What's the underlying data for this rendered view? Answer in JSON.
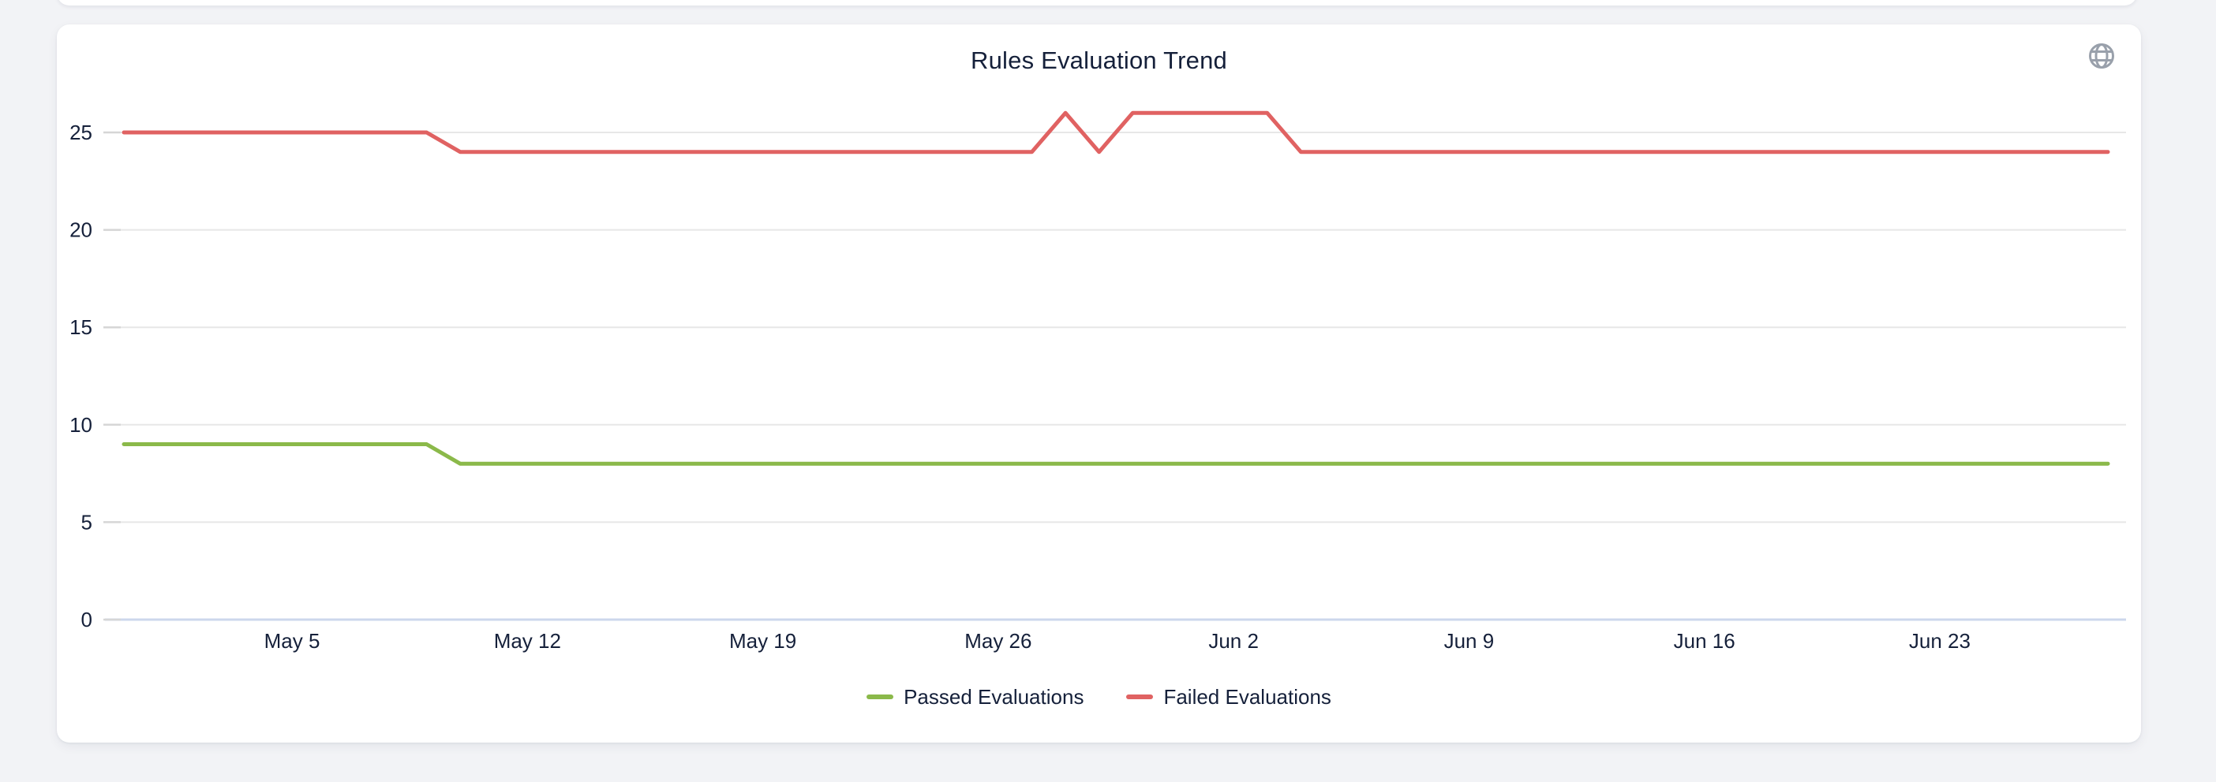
{
  "header": {
    "title": "Rules Evaluation Trend"
  },
  "legend": {
    "items": [
      {
        "label": "Passed Evaluations",
        "color": "#8bb94a"
      },
      {
        "label": "Failed Evaluations",
        "color": "#e06262"
      }
    ]
  },
  "chart_data": {
    "type": "line",
    "title": "Rules Evaluation Trend",
    "xlabel": "",
    "ylabel": "",
    "ylim": [
      0,
      27
    ],
    "yticks": [
      0,
      5,
      10,
      15,
      20,
      25
    ],
    "grid": true,
    "legend_position": "bottom",
    "dates": [
      "Apr 30",
      "May 1",
      "May 2",
      "May 3",
      "May 4",
      "May 5",
      "May 6",
      "May 7",
      "May 8",
      "May 9",
      "May 10",
      "May 11",
      "May 12",
      "May 13",
      "May 14",
      "May 15",
      "May 16",
      "May 17",
      "May 18",
      "May 19",
      "May 20",
      "May 21",
      "May 22",
      "May 23",
      "May 24",
      "May 25",
      "May 26",
      "May 27",
      "May 28",
      "May 29",
      "May 30",
      "May 31",
      "Jun 1",
      "Jun 2",
      "Jun 3",
      "Jun 4",
      "Jun 5",
      "Jun 6",
      "Jun 7",
      "Jun 8",
      "Jun 9",
      "Jun 10",
      "Jun 11",
      "Jun 12",
      "Jun 13",
      "Jun 14",
      "Jun 15",
      "Jun 16",
      "Jun 17",
      "Jun 18",
      "Jun 19",
      "Jun 20",
      "Jun 21",
      "Jun 22",
      "Jun 23",
      "Jun 24",
      "Jun 25",
      "Jun 26",
      "Jun 27",
      "Jun 28"
    ],
    "xtick_indices": [
      5,
      12,
      19,
      26,
      33,
      40,
      47,
      54
    ],
    "xtick_labels": [
      "May 5",
      "May 12",
      "May 19",
      "May 26",
      "Jun 2",
      "Jun 9",
      "Jun 16",
      "Jun 23"
    ],
    "series": [
      {
        "name": "Passed Evaluations",
        "color": "#8bb94a",
        "values": [
          9,
          9,
          9,
          9,
          9,
          9,
          9,
          9,
          9,
          9,
          8,
          8,
          8,
          8,
          8,
          8,
          8,
          8,
          8,
          8,
          8,
          8,
          8,
          8,
          8,
          8,
          8,
          8,
          8,
          8,
          8,
          8,
          8,
          8,
          8,
          8,
          8,
          8,
          8,
          8,
          8,
          8,
          8,
          8,
          8,
          8,
          8,
          8,
          8,
          8,
          8,
          8,
          8,
          8,
          8,
          8,
          8,
          8,
          8,
          8
        ]
      },
      {
        "name": "Failed Evaluations",
        "color": "#e06262",
        "values": [
          25,
          25,
          25,
          25,
          25,
          25,
          25,
          25,
          25,
          25,
          24,
          24,
          24,
          24,
          24,
          24,
          24,
          24,
          24,
          24,
          24,
          24,
          24,
          24,
          24,
          24,
          24,
          24,
          26,
          24,
          26,
          26,
          26,
          26,
          26,
          24,
          24,
          24,
          24,
          24,
          24,
          24,
          24,
          24,
          24,
          24,
          24,
          24,
          24,
          24,
          24,
          24,
          24,
          24,
          24,
          24,
          24,
          24,
          24,
          24
        ]
      }
    ],
    "style": {
      "grid_color": "#e7e7e7",
      "zero_axis_color": "#ccd7ec",
      "tick_color": "#d6d6d6",
      "label_color": "#15203a"
    }
  }
}
